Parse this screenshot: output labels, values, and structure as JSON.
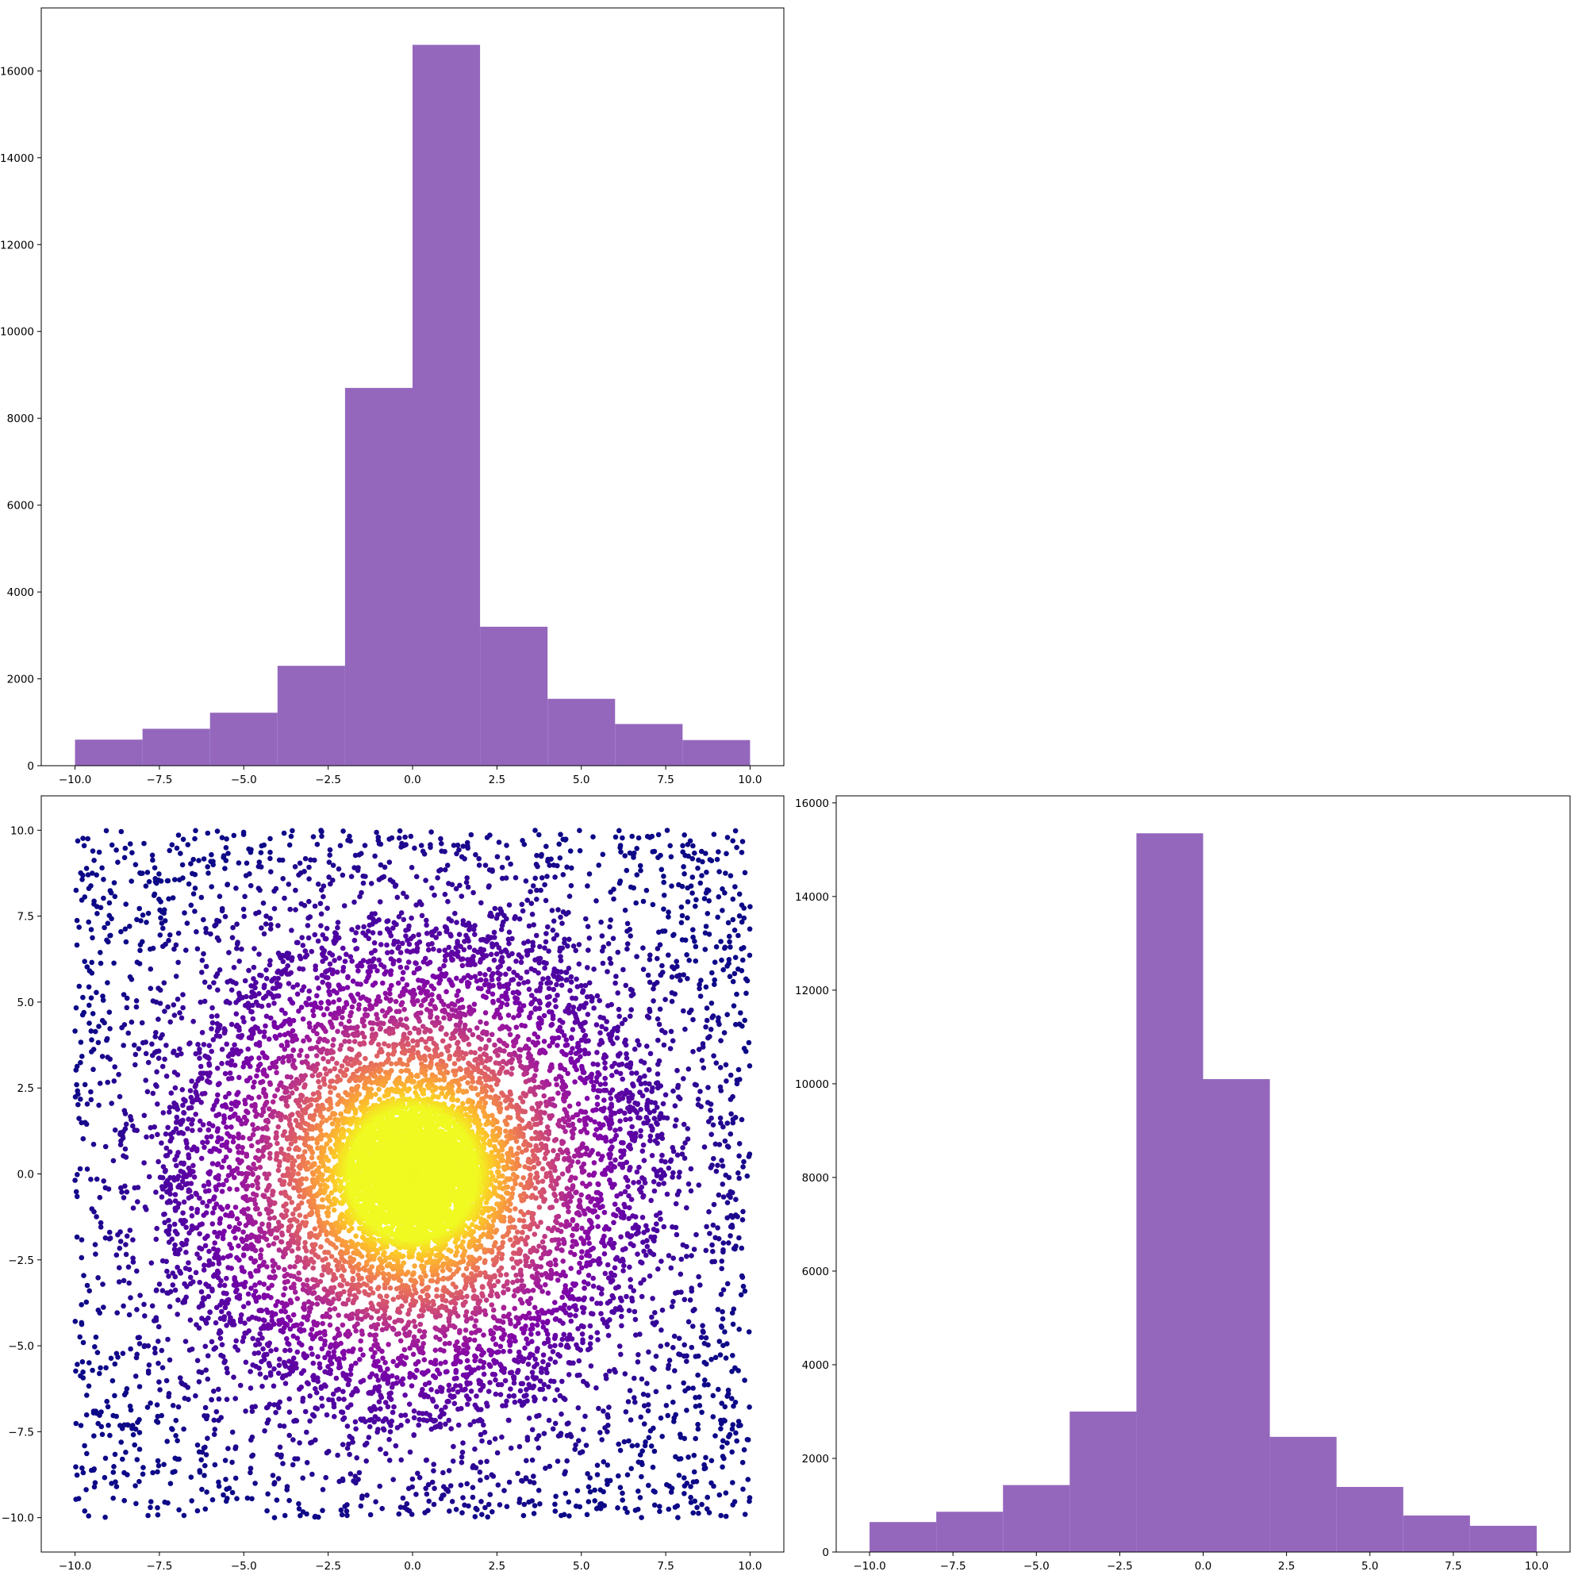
{
  "chart_data": [
    {
      "type": "bar",
      "subtype": "histogram",
      "panel": "top-left",
      "bin_edges": [
        -10,
        -8,
        -6,
        -4,
        -2,
        0,
        2,
        4,
        6,
        8,
        10
      ],
      "values": [
        600,
        850,
        1220,
        2300,
        8700,
        16600,
        3200,
        1540,
        960,
        590
      ],
      "xlim": [
        -11,
        11
      ],
      "ylim": [
        0,
        17450
      ],
      "x_ticks": [
        -10,
        -7.5,
        -5,
        -2.5,
        0,
        2.5,
        5,
        7.5,
        10
      ],
      "x_tick_labels": [
        "−10.0",
        "−7.5",
        "−5.0",
        "−2.5",
        "0.0",
        "2.5",
        "5.0",
        "7.5",
        "10.0"
      ],
      "y_ticks": [
        0,
        2000,
        4000,
        6000,
        8000,
        10000,
        12000,
        14000,
        16000
      ],
      "y_tick_labels": [
        "0",
        "2000",
        "4000",
        "6000",
        "8000",
        "10000",
        "12000",
        "14000",
        "16000"
      ],
      "bar_color": "#9467bd",
      "title": "",
      "xlabel": "",
      "ylabel": ""
    },
    {
      "type": "scatter",
      "panel": "bottom-left",
      "description_of_points": "about 30000 points spread over [-10,10] x [-10,10] with increasing density toward the origin; color encodes closeness to the center (plasma colormap)",
      "x_range": [
        -10,
        10
      ],
      "y_range": [
        -10,
        10
      ],
      "center": [
        0,
        0
      ],
      "xlim": [
        -11,
        11
      ],
      "ylim": [
        -11,
        11
      ],
      "x_ticks": [
        -10,
        -7.5,
        -5,
        -2.5,
        0,
        2.5,
        5,
        7.5,
        10
      ],
      "x_tick_labels": [
        "−10.0",
        "−7.5",
        "−5.0",
        "−2.5",
        "0.0",
        "2.5",
        "5.0",
        "7.5",
        "10.0"
      ],
      "y_ticks": [
        -10,
        -7.5,
        -5,
        -2.5,
        0,
        2.5,
        5,
        7.5,
        10
      ],
      "y_tick_labels": [
        "−10.0",
        "−7.5",
        "−5.0",
        "−2.5",
        "0.0",
        "2.5",
        "5.0",
        "7.5",
        "10.0"
      ],
      "colormap": "plasma",
      "title": "",
      "xlabel": "",
      "ylabel": ""
    },
    {
      "type": "bar",
      "subtype": "histogram",
      "panel": "bottom-right",
      "bin_edges": [
        -10,
        -8,
        -6,
        -4,
        -2,
        0,
        2,
        4,
        6,
        8,
        10
      ],
      "values": [
        640,
        860,
        1430,
        3000,
        15350,
        10100,
        2460,
        1390,
        780,
        560
      ],
      "xlim": [
        -11,
        11
      ],
      "ylim": [
        0,
        16150
      ],
      "x_ticks": [
        -10,
        -7.5,
        -5,
        -2.5,
        0,
        2.5,
        5,
        7.5,
        10
      ],
      "x_tick_labels": [
        "−10.0",
        "−7.5",
        "−5.0",
        "−2.5",
        "0.0",
        "2.5",
        "5.0",
        "7.5",
        "10.0"
      ],
      "y_ticks": [
        0,
        2000,
        4000,
        6000,
        8000,
        10000,
        12000,
        14000,
        16000
      ],
      "y_tick_labels": [
        "0",
        "2000",
        "4000",
        "6000",
        "8000",
        "10000",
        "12000",
        "14000",
        "16000"
      ],
      "bar_color": "#9467bd",
      "title": "",
      "xlabel": "",
      "ylabel": ""
    }
  ]
}
